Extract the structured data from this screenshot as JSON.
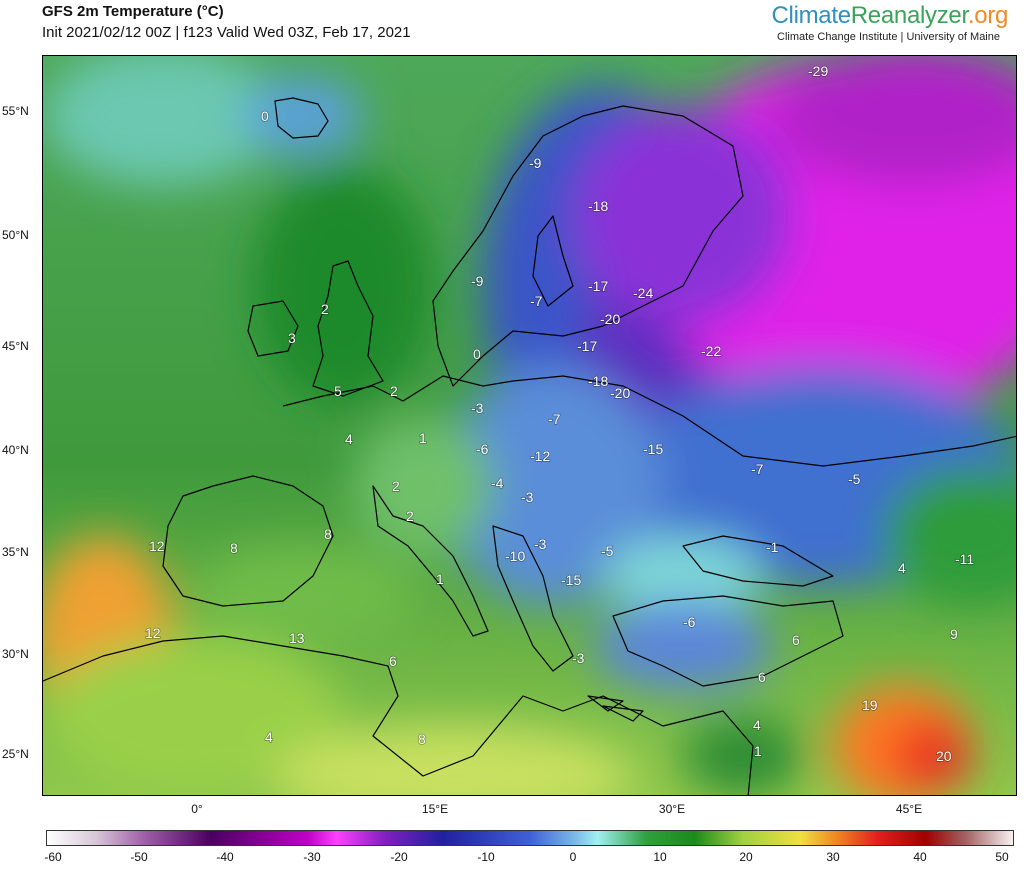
{
  "header": {
    "title": "GFS 2m Temperature (°C)",
    "subtitle": "Init 2021/02/12 00Z | f123 Valid Wed 03Z, Feb 17, 2021",
    "brand_part1": "Climate",
    "brand_part2": "Reanalyzer",
    "brand_part3": ".org",
    "brand_sub": "Climate Change Institute | University of Maine"
  },
  "axes": {
    "lat_ticks": [
      "55°N",
      "50°N",
      "45°N",
      "40°N",
      "35°N",
      "30°N",
      "25°N"
    ],
    "lon_ticks": [
      "0°",
      "15°E",
      "30°E",
      "45°E"
    ]
  },
  "colorbar": {
    "ticks": [
      "-60",
      "-50",
      "-40",
      "-30",
      "-20",
      "-10",
      "0",
      "10",
      "20",
      "30",
      "40",
      "50"
    ]
  },
  "labels": [
    "-29",
    "0",
    "-9",
    "-18",
    "-9",
    "-17",
    "-24",
    "-7",
    "-20",
    "2",
    "3",
    "-17",
    "-22",
    "0",
    "5",
    "-18",
    "-20",
    "2",
    "-3",
    "-7",
    "4",
    "1",
    "-6",
    "-12",
    "-15",
    "-7",
    "-5",
    "2",
    "-4",
    "-3",
    "2",
    "12",
    "8",
    "8",
    "-10",
    "-3",
    "-5",
    "-1",
    "4",
    "-11",
    "1",
    "-15",
    "12",
    "13",
    "-6",
    "6",
    "9",
    "6",
    "-3",
    "6",
    "19",
    "4",
    "4",
    "1",
    "8",
    "20"
  ],
  "colors": {
    "cold_extreme": "#ff00ff",
    "cold": "#3050c0",
    "mild": "#33a033",
    "warm": "#ff9020",
    "hot": "#e02020"
  }
}
